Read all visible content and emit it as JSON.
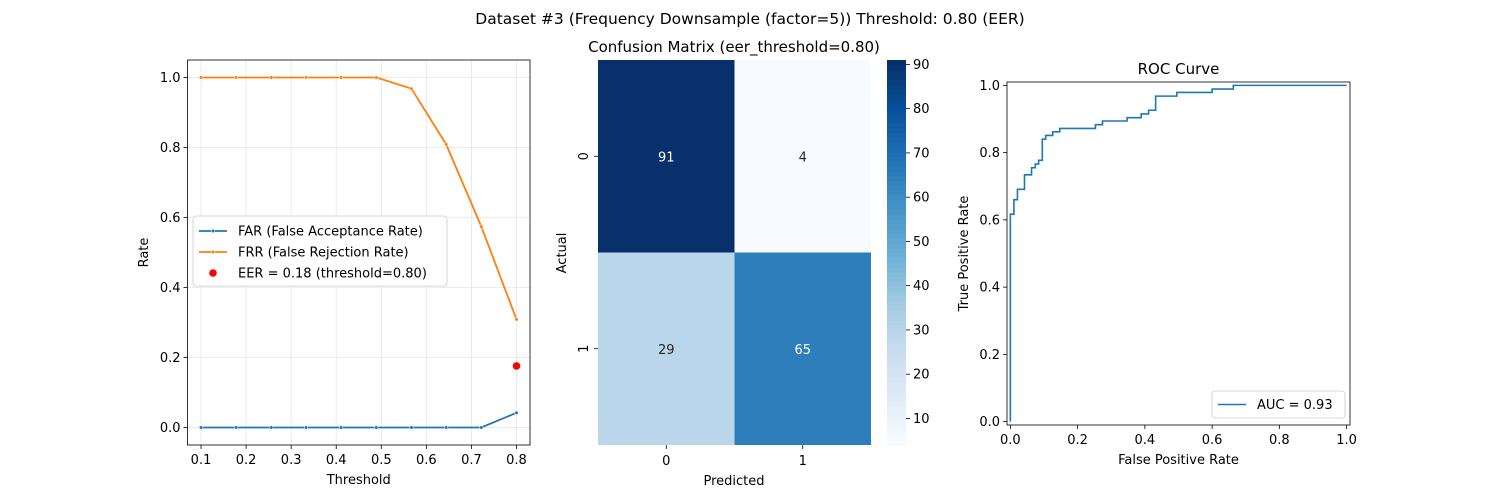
{
  "suptitle": "Dataset #3 (Frequency Downsample (factor=5))    Threshold: 0.80 (EER)",
  "chart_data": [
    {
      "type": "line",
      "title": "",
      "xlabel": "Threshold",
      "ylabel": "Rate",
      "xlim": [
        0.07,
        0.83
      ],
      "ylim": [
        -0.05,
        1.05
      ],
      "xticks": [
        "0.1",
        "0.2",
        "0.3",
        "0.4",
        "0.5",
        "0.6",
        "0.7",
        "0.8"
      ],
      "yticks": [
        "0.0",
        "0.2",
        "0.4",
        "0.6",
        "0.8",
        "1.0"
      ],
      "grid": true,
      "legend_position": "center-left",
      "x": [
        0.1,
        0.178,
        0.256,
        0.333,
        0.411,
        0.489,
        0.567,
        0.644,
        0.722,
        0.8
      ],
      "series": [
        {
          "name": "FAR (False Acceptance Rate)",
          "color": "#1f77b4",
          "values": [
            0.0,
            0.0,
            0.0,
            0.0,
            0.0,
            0.0,
            0.0,
            0.0,
            0.0,
            0.042
          ]
        },
        {
          "name": "FRR (False Rejection Rate)",
          "color": "#ff7f0e",
          "values": [
            1.0,
            1.0,
            1.0,
            1.0,
            1.0,
            1.0,
            0.968,
            0.809,
            0.574,
            0.309
          ]
        }
      ],
      "points": [
        {
          "name": "EER = 0.18 (threshold=0.80)",
          "color": "#ff0000",
          "x": 0.8,
          "y": 0.176
        }
      ]
    },
    {
      "type": "heatmap",
      "title": "Confusion Matrix (eer_threshold=0.80)",
      "xlabel": "Predicted",
      "ylabel": "Actual",
      "xticks": [
        "0",
        "1"
      ],
      "yticks": [
        "0",
        "1"
      ],
      "values": [
        [
          91,
          4
        ],
        [
          29,
          65
        ]
      ],
      "colorbar": {
        "min": 4,
        "max": 91,
        "ticks": [
          "10",
          "20",
          "30",
          "40",
          "50",
          "60",
          "70",
          "80",
          "90"
        ]
      }
    },
    {
      "type": "line",
      "title": "ROC Curve",
      "xlabel": "False Positive Rate",
      "ylabel": "True Positive Rate",
      "xlim": [
        -0.01,
        1.01
      ],
      "ylim": [
        -0.01,
        1.01
      ],
      "xticks": [
        "0.0",
        "0.2",
        "0.4",
        "0.6",
        "0.8",
        "1.0"
      ],
      "yticks": [
        "0.0",
        "0.2",
        "0.4",
        "0.6",
        "0.8",
        "1.0"
      ],
      "grid": false,
      "legend_position": "lower-right",
      "series": [
        {
          "name": "AUC = 0.93",
          "color": "#1f77b4",
          "x": [
            0.0,
            0.0,
            0.0,
            0.0105,
            0.0105,
            0.021,
            0.021,
            0.042,
            0.042,
            0.063,
            0.063,
            0.074,
            0.074,
            0.084,
            0.084,
            0.095,
            0.095,
            0.105,
            0.105,
            0.126,
            0.126,
            0.147,
            0.147,
            0.168,
            0.168,
            0.253,
            0.253,
            0.274,
            0.274,
            0.347,
            0.347,
            0.389,
            0.389,
            0.411,
            0.411,
            0.432,
            0.432,
            0.495,
            0.495,
            0.6,
            0.6,
            0.663,
            0.663,
            1.0
          ],
          "y": [
            0.0,
            0.02,
            0.617,
            0.617,
            0.66,
            0.66,
            0.691,
            0.691,
            0.734,
            0.734,
            0.755,
            0.755,
            0.766,
            0.766,
            0.777,
            0.777,
            0.84,
            0.84,
            0.851,
            0.851,
            0.862,
            0.862,
            0.872,
            0.872,
            0.872,
            0.872,
            0.883,
            0.883,
            0.894,
            0.894,
            0.904,
            0.904,
            0.915,
            0.915,
            0.926,
            0.926,
            0.968,
            0.968,
            0.979,
            0.979,
            0.989,
            0.989,
            1.0,
            1.0
          ]
        }
      ]
    }
  ]
}
